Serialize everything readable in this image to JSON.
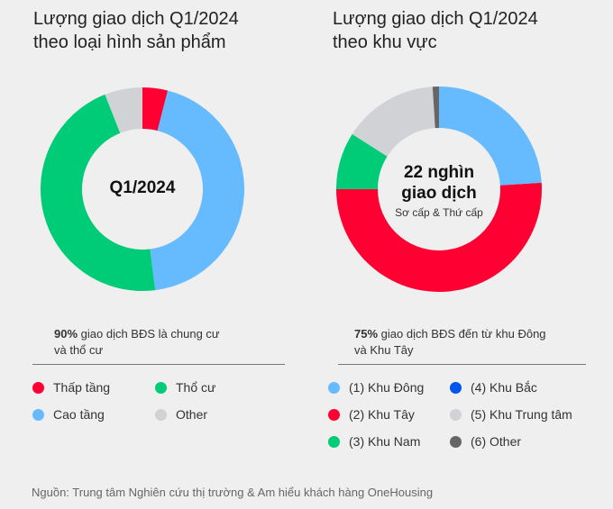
{
  "chart_data": [
    {
      "type": "pie",
      "variant": "donut",
      "title": "Lượng giao dịch Q1/2024 theo loại hình sản phẩm",
      "title_lines": [
        "Lượng giao dịch Q1/2024",
        "theo loại hình sản phẩm"
      ],
      "center_label": "Q1/2024",
      "note_bold": "90%",
      "note_lines": [
        "giao dịch BĐS là chung cư",
        "và thổ cư"
      ],
      "slices": [
        {
          "name": "Thấp tầng",
          "value": 4,
          "color": "#ff0033"
        },
        {
          "name": "Cao tầng",
          "value": 44,
          "color": "#66bbff"
        },
        {
          "name": "Thổ cư",
          "value": 46,
          "color": "#00cc77"
        },
        {
          "name": "Other",
          "value": 6,
          "color": "#d0d2d6"
        }
      ]
    },
    {
      "type": "pie",
      "variant": "donut",
      "title": "Lượng giao dịch Q1/2024 theo khu vực",
      "title_lines": [
        "Lượng giao dịch Q1/2024",
        "theo khu vực"
      ],
      "center_label_lines": [
        "22 nghìn",
        "giao dịch"
      ],
      "center_sublabel": "Sơ cấp & Thứ cấp",
      "note_bold": "75%",
      "note_lines": [
        "giao dịch BĐS đến từ khu Đông",
        "và Khu Tây"
      ],
      "slices": [
        {
          "name": "(1) Khu Đông",
          "value": 24,
          "color": "#66bbff"
        },
        {
          "name": "(2) Khu Tây",
          "value": 51,
          "color": "#ff0033"
        },
        {
          "name": "(3) Khu Nam",
          "value": 9,
          "color": "#00cc77"
        },
        {
          "name": "(4) Khu Bắc",
          "value": 0,
          "color": "#0055ee"
        },
        {
          "name": "(5) Khu Trung tâm",
          "value": 15,
          "color": "#d0d2d6"
        },
        {
          "name": "(6) Other",
          "value": 1,
          "color": "#666666"
        }
      ]
    }
  ],
  "source": "Nguồn: Trung tâm Nghiên cứu thị trường & Am hiểu khách hàng OneHousing"
}
